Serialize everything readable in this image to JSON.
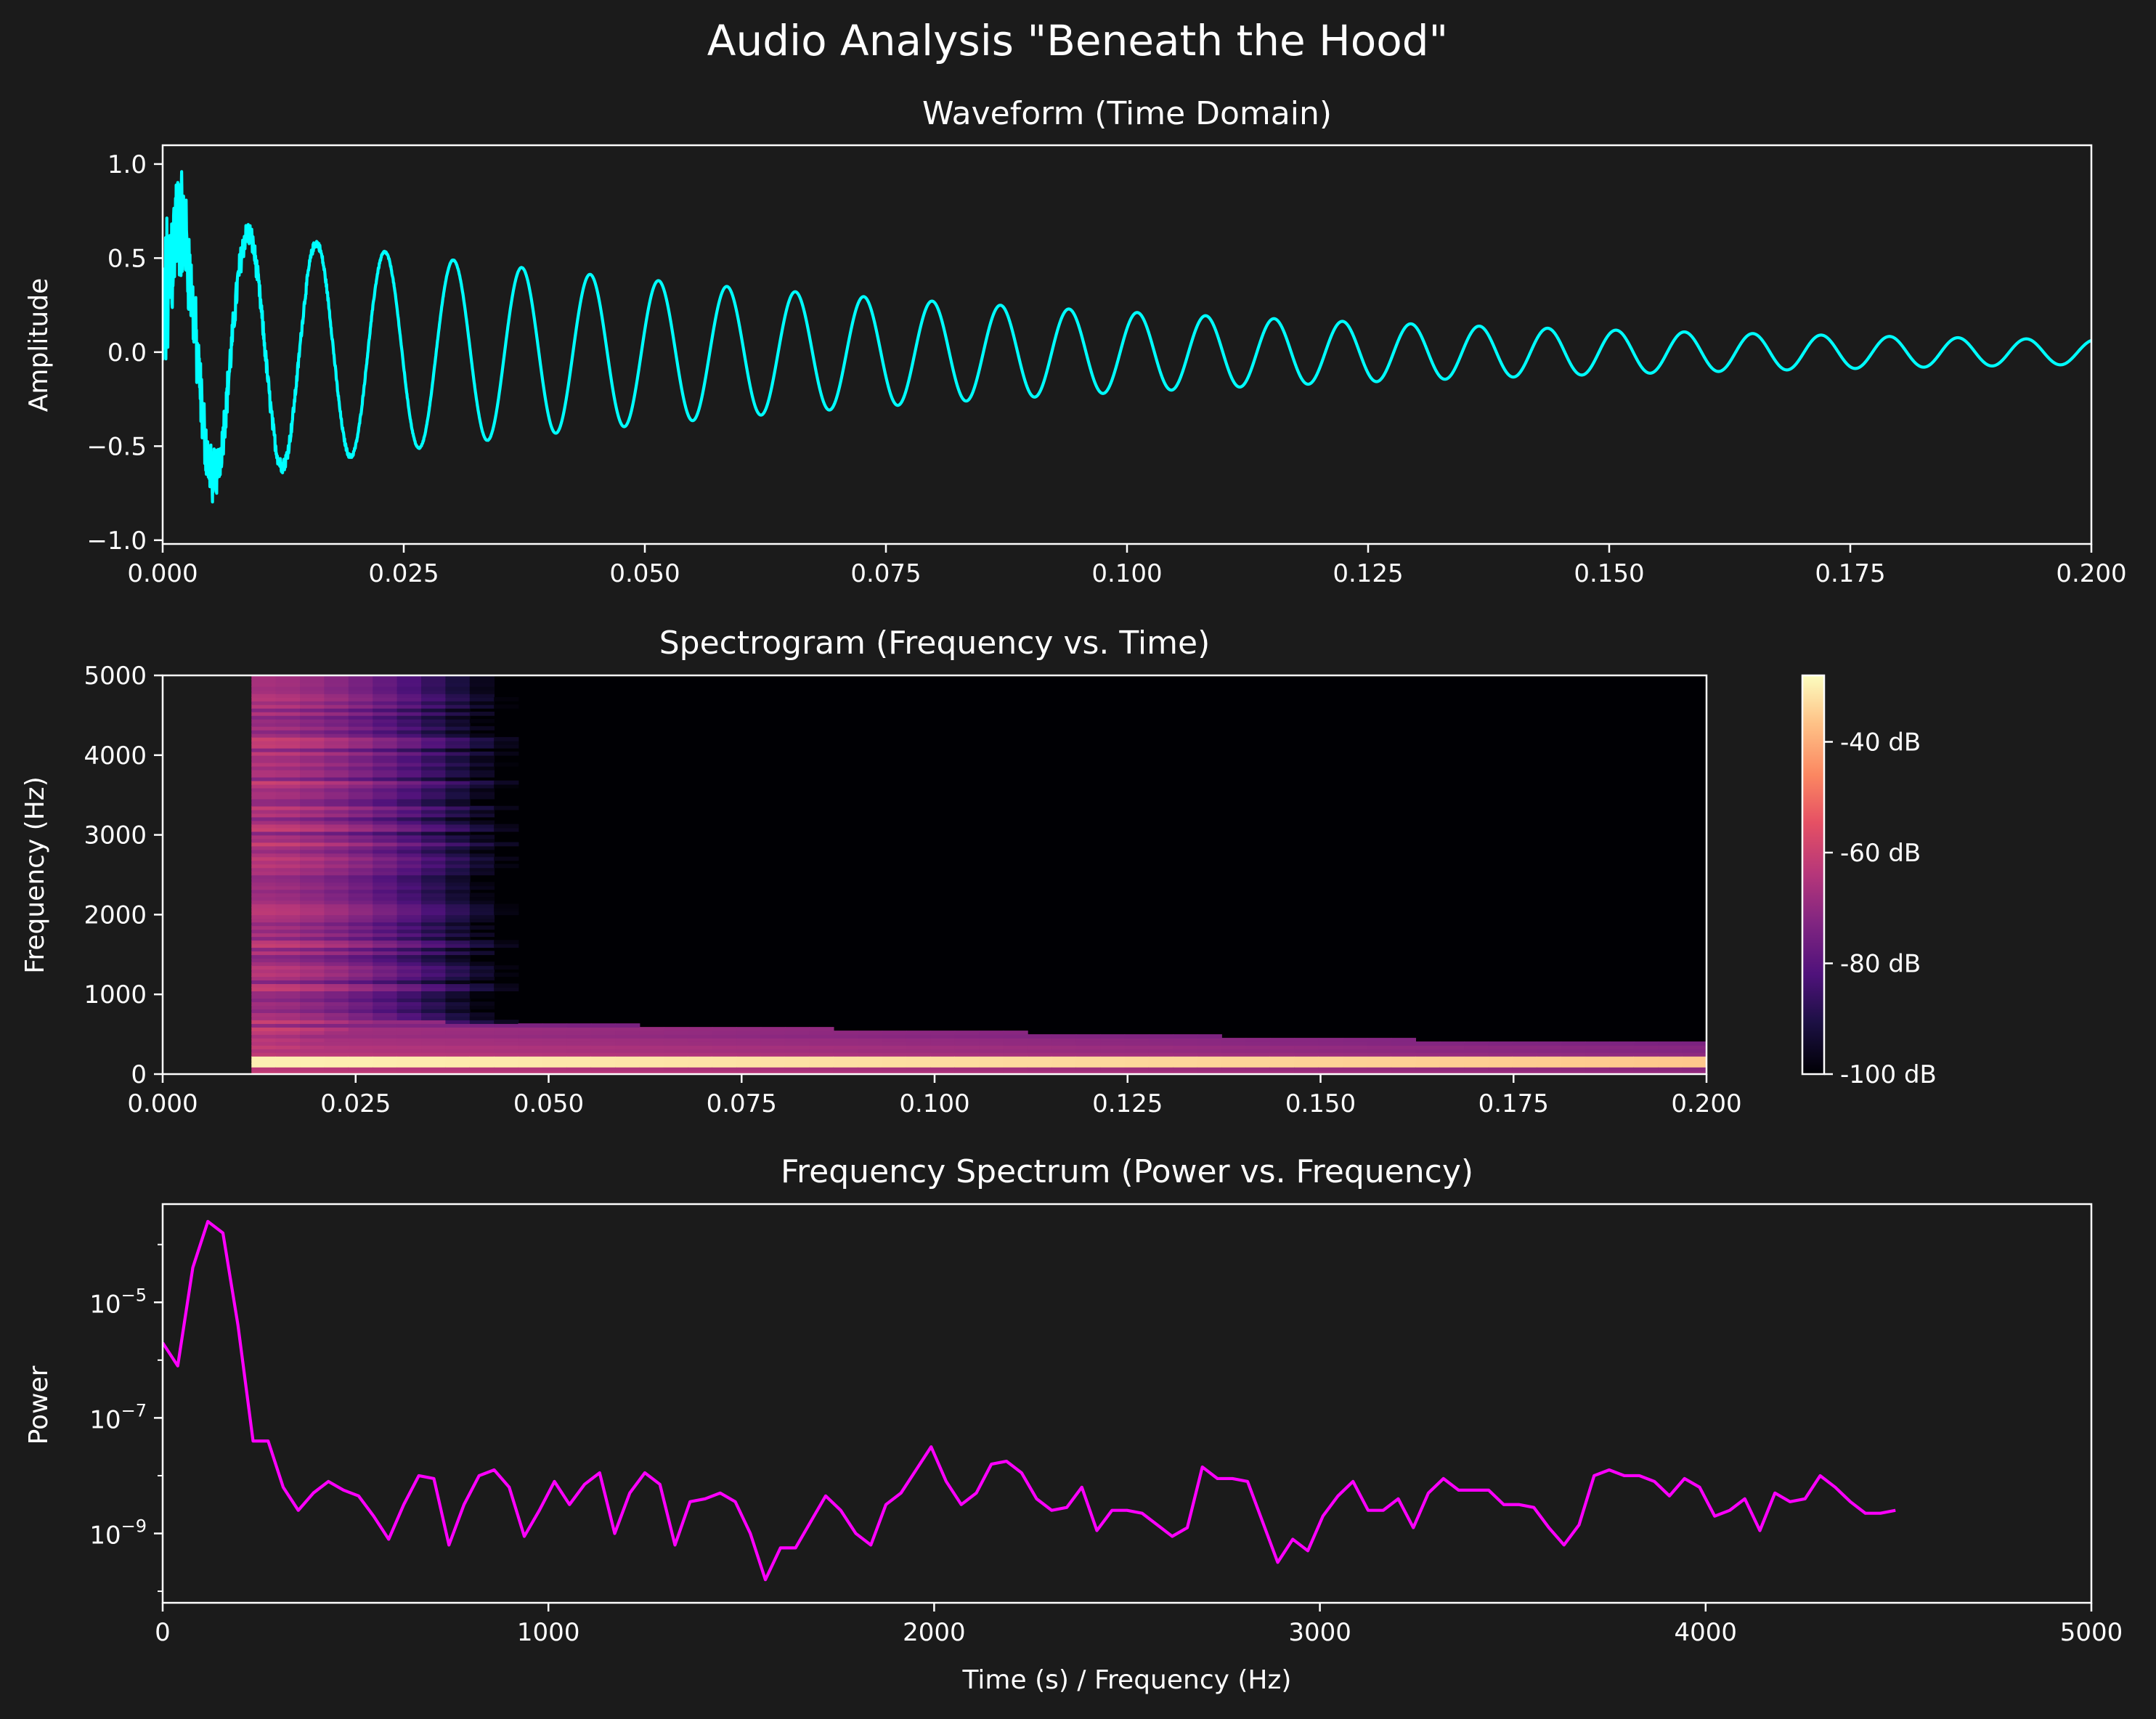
{
  "suptitle": "Audio Analysis \"Beneath the Hood\"",
  "colors": {
    "background": "#1b1b1b",
    "axes": "#ffffff",
    "text": "#ffffff",
    "waveform": "#00ffff",
    "spectrum": "#ff00ff",
    "colormap": "magma"
  },
  "chart_data": [
    {
      "type": "line",
      "title": "Waveform (Time Domain)",
      "xlabel": "",
      "ylabel": "Amplitude",
      "xlim": [
        0,
        0.2
      ],
      "ylim": [
        -1.02,
        1.1
      ],
      "x_ticks": [
        0.0,
        0.025,
        0.05,
        0.075,
        0.1,
        0.125,
        0.15,
        0.175,
        0.2
      ],
      "x_tick_labels": [
        "0.000",
        "0.025",
        "0.050",
        "0.075",
        "0.100",
        "0.125",
        "0.150",
        "0.175",
        "0.200"
      ],
      "y_ticks": [
        1.0,
        0.5,
        0.0,
        -0.5,
        -1.0
      ],
      "y_tick_labels": [
        "1.0",
        "0.5",
        "0.0",
        "−0.5",
        "−1.0"
      ],
      "series": [
        {
          "color": "#00ffff",
          "description_fields": "damped sinusoid with noise burst at start",
          "signal": {
            "frequency_hz": 141,
            "start_amplitude": 0.7,
            "end_amplitude": 0.065,
            "noise_amplitude": 0.3,
            "noise_decay_s": 0.006
          }
        }
      ],
      "peaks_approx": [
        {
          "x": 0.008,
          "y": 0.73
        },
        {
          "x": 0.015,
          "y": 0.62
        },
        {
          "x": 0.022,
          "y": 0.55
        },
        {
          "x": 0.029,
          "y": 0.49
        },
        {
          "x": 0.036,
          "y": 0.45
        },
        {
          "x": 0.043,
          "y": 0.41
        },
        {
          "x": 0.05,
          "y": 0.37
        },
        {
          "x": 0.057,
          "y": 0.35
        },
        {
          "x": 0.065,
          "y": 0.31
        },
        {
          "x": 0.072,
          "y": 0.29
        },
        {
          "x": 0.08,
          "y": 0.26
        },
        {
          "x": 0.087,
          "y": 0.24
        },
        {
          "x": 0.095,
          "y": 0.22
        },
        {
          "x": 0.102,
          "y": 0.2
        },
        {
          "x": 0.11,
          "y": 0.18
        },
        {
          "x": 0.118,
          "y": 0.17
        },
        {
          "x": 0.127,
          "y": 0.15
        },
        {
          "x": 0.135,
          "y": 0.14
        },
        {
          "x": 0.143,
          "y": 0.12
        },
        {
          "x": 0.152,
          "y": 0.11
        },
        {
          "x": 0.161,
          "y": 0.1
        },
        {
          "x": 0.17,
          "y": 0.09
        },
        {
          "x": 0.179,
          "y": 0.08
        },
        {
          "x": 0.188,
          "y": 0.07
        },
        {
          "x": 0.197,
          "y": 0.065
        }
      ]
    },
    {
      "type": "heatmap",
      "title": "Spectrogram (Frequency vs. Time)",
      "xlabel": "",
      "ylabel": "Frequency (Hz)",
      "xlim": [
        0,
        0.2
      ],
      "ylim": [
        0,
        5000
      ],
      "data_start_time": 0.0115,
      "x_ticks": [
        0.0,
        0.025,
        0.05,
        0.075,
        0.1,
        0.125,
        0.15,
        0.175,
        0.2
      ],
      "x_tick_labels": [
        "0.000",
        "0.025",
        "0.050",
        "0.075",
        "0.100",
        "0.125",
        "0.150",
        "0.175",
        "0.200"
      ],
      "y_ticks": [
        0,
        1000,
        2000,
        3000,
        4000,
        5000
      ],
      "y_tick_labels": [
        "0",
        "1000",
        "2000",
        "3000",
        "4000",
        "5000"
      ],
      "colorbar": {
        "range_db": [
          -100,
          -28
        ],
        "ticks": [
          -40,
          -60,
          -80,
          -100
        ],
        "tick_labels": [
          "-40 dB",
          "-60 dB",
          "-80 dB",
          "-100 dB"
        ]
      },
      "description_fields": {
        "dominant_band_hz": 140,
        "dominant_band_level_db": -30,
        "low_band_level_db": -60,
        "high_freq_fade_time_s": 0.055,
        "high_freq_level_db": -78
      }
    },
    {
      "type": "line",
      "title": "Frequency Spectrum (Power vs. Frequency)",
      "xlabel": "Time (s) / Frequency (Hz)",
      "ylabel": "Power",
      "xlim": [
        0,
        5000
      ],
      "ylim_log10": [
        -10.2,
        -3.3
      ],
      "y_scale": "log",
      "x_ticks": [
        0,
        1000,
        2000,
        3000,
        4000,
        5000
      ],
      "x_tick_labels": [
        "0",
        "1000",
        "2000",
        "3000",
        "4000",
        "5000"
      ],
      "y_ticks_log10": [
        -5,
        -7,
        -9
      ],
      "y_tick_bases": [
        "10",
        "10",
        "10"
      ],
      "y_tick_exponents": [
        "−5",
        "−7",
        "−9"
      ],
      "series": [
        {
          "color": "#ff00ff",
          "x_step_hz": 39.0625,
          "log10_power": [
            -5.7,
            -6.1,
            -4.4,
            -3.6,
            -3.8,
            -5.4,
            -7.4,
            -7.4,
            -8.2,
            -8.6,
            -8.3,
            -8.1,
            -8.25,
            -8.35,
            -8.7,
            -9.1,
            -8.5,
            -8.0,
            -8.05,
            -9.2,
            -8.5,
            -8.0,
            -7.9,
            -8.2,
            -9.05,
            -8.6,
            -8.1,
            -8.5,
            -8.15,
            -7.95,
            -9.0,
            -8.3,
            -7.95,
            -8.15,
            -9.2,
            -8.45,
            -8.4,
            -8.3,
            -8.45,
            -9.0,
            -9.8,
            -9.25,
            -9.25,
            -8.8,
            -8.35,
            -8.6,
            -9.0,
            -9.2,
            -8.5,
            -8.3,
            -7.9,
            -7.5,
            -8.1,
            -8.5,
            -8.3,
            -7.8,
            -7.75,
            -7.95,
            -8.4,
            -8.6,
            -8.55,
            -8.2,
            -8.95,
            -8.6,
            -8.6,
            -8.65,
            -8.85,
            -9.05,
            -8.9,
            -7.85,
            -8.05,
            -8.05,
            -8.1,
            -8.8,
            -9.5,
            -9.1,
            -9.3,
            -8.7,
            -8.35,
            -8.1,
            -8.6,
            -8.6,
            -8.4,
            -8.9,
            -8.3,
            -8.05,
            -8.25,
            -8.25,
            -8.25,
            -8.5,
            -8.5,
            -8.55,
            -8.9,
            -9.2,
            -8.85,
            -8.0,
            -7.9,
            -8.0,
            -8.0,
            -8.1,
            -8.35,
            -8.05,
            -8.2,
            -8.7,
            -8.6,
            -8.4,
            -8.95,
            -8.3,
            -8.45,
            -8.4,
            -8.0,
            -8.2,
            -8.45,
            -8.65,
            -8.65,
            -8.6
          ]
        }
      ]
    }
  ]
}
